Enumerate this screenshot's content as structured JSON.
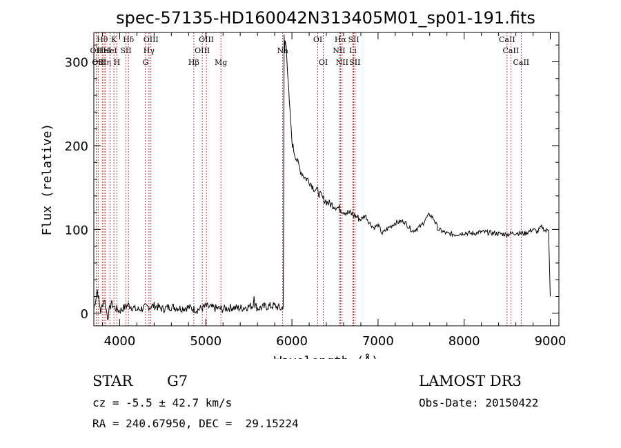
{
  "chart_data": {
    "type": "line",
    "title": "spec-57135-HD160042N313405M01_sp01-191.fits",
    "xlabel": "Wavelength (Å)",
    "ylabel": "Flux (relative)",
    "xlim": [
      3700,
      9100
    ],
    "ylim": [
      -15,
      335
    ],
    "xticks": [
      4000,
      5000,
      6000,
      7000,
      8000,
      9000
    ],
    "yticks": [
      0,
      100,
      200,
      300
    ],
    "series": [
      {
        "name": "flux",
        "x": [
          3700,
          3740,
          3780,
          3820,
          3860,
          3900,
          3950,
          4000,
          4100,
          4200,
          4300,
          4400,
          4500,
          4600,
          4700,
          4800,
          4900,
          5000,
          5100,
          5200,
          5300,
          5400,
          5500,
          5550,
          5560,
          5570,
          5600,
          5700,
          5800,
          5880,
          5900,
          5905,
          5910,
          5915,
          5920,
          5935,
          5950,
          5970,
          5990,
          6000,
          6020,
          6050,
          6100,
          6150,
          6200,
          6250,
          6300,
          6350,
          6400,
          6450,
          6500,
          6550,
          6600,
          6650,
          6700,
          6750,
          6800,
          6850,
          6900,
          6950,
          7000,
          7050,
          7100,
          7150,
          7200,
          7300,
          7400,
          7500,
          7550,
          7600,
          7650,
          7700,
          7800,
          7900,
          8000,
          8100,
          8200,
          8300,
          8400,
          8500,
          8600,
          8700,
          8800,
          8850,
          8900,
          8950,
          8980,
          8990,
          9000
        ],
        "y": [
          5,
          28,
          2,
          18,
          -5,
          12,
          6,
          3,
          10,
          4,
          7,
          9,
          5,
          8,
          6,
          7,
          4,
          8,
          6,
          5,
          7,
          6,
          8,
          9,
          25,
          10,
          6,
          8,
          9,
          5,
          10,
          140,
          330,
          310,
          325,
          318,
          290,
          250,
          220,
          205,
          195,
          185,
          170,
          162,
          158,
          150,
          145,
          138,
          133,
          130,
          128,
          125,
          122,
          120,
          118,
          115,
          112,
          117,
          108,
          102,
          105,
          95,
          100,
          104,
          108,
          110,
          98,
          104,
          112,
          118,
          112,
          100,
          95,
          94,
          96,
          95,
          97,
          96,
          95,
          94,
          96,
          95,
          100,
          97,
          103,
          98,
          101,
          60,
          20
        ]
      }
    ],
    "line_markers": [
      {
        "wavelength": 3727,
        "label": "OII",
        "row": 2
      },
      {
        "wavelength": 3750,
        "label": "OII",
        "row": 3
      },
      {
        "wavelength": 3798,
        "label": "Hθ",
        "row": 1
      },
      {
        "wavelength": 3820,
        "label": "HeI",
        "row": 2
      },
      {
        "wavelength": 3835,
        "label": "Hη",
        "row": 3
      },
      {
        "wavelength": 3889,
        "label": "HeI",
        "row": 2
      },
      {
        "wavelength": 3933,
        "label": "K",
        "row": 1
      },
      {
        "wavelength": 3968,
        "label": "H",
        "row": 3
      },
      {
        "wavelength": 4072,
        "label": "SII",
        "row": 2
      },
      {
        "wavelength": 4102,
        "label": "Hδ",
        "row": 1
      },
      {
        "wavelength": 4300,
        "label": "G",
        "row": 3
      },
      {
        "wavelength": 4340,
        "label": "Hγ",
        "row": 2
      },
      {
        "wavelength": 4363,
        "label": "OIII",
        "row": 1
      },
      {
        "wavelength": 4861,
        "label": "Hβ",
        "row": 3
      },
      {
        "wavelength": 4959,
        "label": "OIII",
        "row": 2
      },
      {
        "wavelength": 5007,
        "label": "OIII",
        "row": 1
      },
      {
        "wavelength": 5175,
        "label": "Mg",
        "row": 3
      },
      {
        "wavelength": 5893,
        "label": "Na",
        "row": 2
      },
      {
        "wavelength": 6300,
        "label": "OI",
        "row": 1
      },
      {
        "wavelength": 6364,
        "label": "OI",
        "row": 3
      },
      {
        "wavelength": 6548,
        "label": "NII",
        "row": 2
      },
      {
        "wavelength": 6563,
        "label": "Hα",
        "row": 1
      },
      {
        "wavelength": 6583,
        "label": "NII",
        "row": 3
      },
      {
        "wavelength": 6707,
        "label": "Li",
        "row": 2
      },
      {
        "wavelength": 6717,
        "label": "SII",
        "row": 1
      },
      {
        "wavelength": 6731,
        "label": "SII",
        "row": 3
      },
      {
        "wavelength": 8498,
        "label": "CaII",
        "row": 1
      },
      {
        "wavelength": 8542,
        "label": "CaII",
        "row": 2
      },
      {
        "wavelength": 8662,
        "label": "CaII",
        "row": 3
      }
    ]
  },
  "info": {
    "class": "STAR",
    "subclass": "G7",
    "survey": "LAMOST DR3",
    "cz": "cz = -5.5 ± 42.7 km/s",
    "obs_date": "Obs-Date: 20150422",
    "coords": "RA = 240.67950, DEC =  29.15224"
  }
}
